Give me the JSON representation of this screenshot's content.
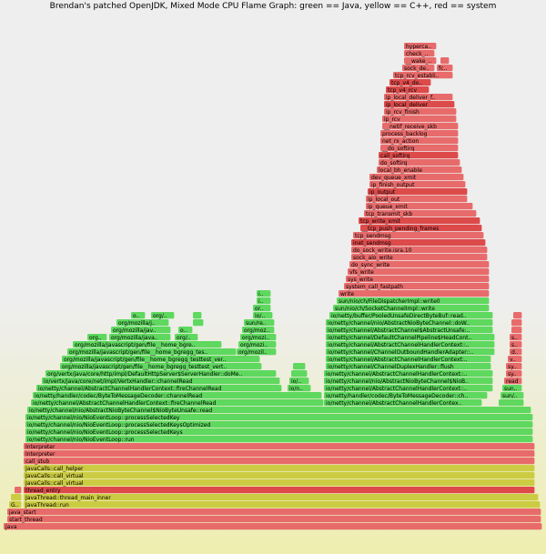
{
  "title": "Brendan's patched OpenJDK, Mixed Mode CPU Flame Graph: green == Java, yellow == C++, red == system",
  "colors": {
    "java": "#5fd85f",
    "cpp": "#cccc44",
    "system": "#e86b6b",
    "kernel": "#dd4a4a"
  },
  "chart_data": {
    "type": "flamegraph",
    "x_total": 600,
    "frames": [
      {
        "name": "java",
        "depth": 0,
        "start": 4,
        "width": 592,
        "kind": "system"
      },
      {
        "name": "start_thread",
        "depth": 1,
        "start": 8,
        "width": 587,
        "kind": "system"
      },
      {
        "name": "java_start",
        "depth": 2,
        "start": 8,
        "width": 587,
        "kind": "system"
      },
      {
        "name": "GC..",
        "depth": 3,
        "start": 10,
        "width": 14,
        "kind": "cpp"
      },
      {
        "name": "JavaThread::run",
        "depth": 3,
        "start": 26,
        "width": 568,
        "kind": "cpp"
      },
      {
        "name": "St..",
        "depth": 4,
        "start": 12,
        "width": 12,
        "kind": "cpp"
      },
      {
        "name": "JavaThread::thread_main_inner",
        "depth": 4,
        "start": 26,
        "width": 566,
        "kind": "cpp"
      },
      {
        "name": "",
        "depth": 5,
        "start": 16,
        "width": 8,
        "kind": "system"
      },
      {
        "name": "thread_entry",
        "depth": 5,
        "start": 26,
        "width": 562,
        "kind": "kernel"
      },
      {
        "name": "JavaCalls::call_virtual",
        "depth": 6,
        "start": 26,
        "width": 562,
        "kind": "cpp"
      },
      {
        "name": "JavaCalls::call_virtual",
        "depth": 7,
        "start": 26,
        "width": 562,
        "kind": "cpp"
      },
      {
        "name": "JavaCalls::call_helper",
        "depth": 8,
        "start": 26,
        "width": 562,
        "kind": "cpp"
      },
      {
        "name": "call_stub",
        "depth": 9,
        "start": 26,
        "width": 562,
        "kind": "system"
      },
      {
        "name": "Interpreter",
        "depth": 10,
        "start": 26,
        "width": 562,
        "kind": "system"
      },
      {
        "name": "Interpreter",
        "depth": 11,
        "start": 26,
        "width": 562,
        "kind": "system"
      },
      {
        "name": "io/netty/channel/nio/NioEventLoop::run",
        "depth": 12,
        "start": 28,
        "width": 558,
        "kind": "java"
      },
      {
        "name": "io/netty/channel/nio/NioEventLoop::processSelectedKeys",
        "depth": 13,
        "start": 28,
        "width": 558,
        "kind": "java"
      },
      {
        "name": "io/netty/channel/nio/NioEventLoop::processSelectedKeysOptimized",
        "depth": 14,
        "start": 28,
        "width": 558,
        "kind": "java"
      },
      {
        "name": "io/netty/channel/nio/NioEventLoop::processSelectedKey",
        "depth": 15,
        "start": 28,
        "width": 558,
        "kind": "java"
      },
      {
        "name": "io/netty/channel/nio/AbstractNioByteChannel$NioByteUnsafe::read",
        "depth": 16,
        "start": 30,
        "width": 554,
        "kind": "java"
      },
      {
        "name": "io/netty/channel/AbstractChannelHandlerContext::fireChannelRead",
        "depth": 17,
        "start": 34,
        "width": 322,
        "kind": "java"
      },
      {
        "name": "io/netty/channel/AbstractChannelHandlerContext::fire..",
        "depth": 17,
        "start": 356,
        "width": 174,
        "kind": "java"
      },
      {
        "name": "",
        "depth": 17,
        "start": 548,
        "width": 28,
        "kind": "java"
      },
      {
        "name": "io/netty/handler/codec/ByteToMessageDecoder::channelRead",
        "depth": 18,
        "start": 36,
        "width": 318,
        "kind": "java"
      },
      {
        "name": "io/netty/handler/codec/ByteToMessageDecoder::channe..",
        "depth": 18,
        "start": 356,
        "width": 180,
        "kind": "java"
      },
      {
        "name": "sun/ni..",
        "depth": 18,
        "start": 550,
        "width": 26,
        "kind": "java"
      },
      {
        "name": "io/netty/channel/AbstractChannelHandlerContext::fireChannelRead",
        "depth": 19,
        "start": 40,
        "width": 270,
        "kind": "java"
      },
      {
        "name": "io/nett..",
        "depth": 19,
        "start": 316,
        "width": 26,
        "kind": "java"
      },
      {
        "name": "io/netty/channel/AbstractChannelHandlerContext::fireChannelR..",
        "depth": 19,
        "start": 356,
        "width": 186,
        "kind": "java"
      },
      {
        "name": "sun/ni..",
        "depth": 19,
        "start": 552,
        "width": 22,
        "kind": "java"
      },
      {
        "name": "io/vertx/java/core/net/impl/VertxHandler::channelRead",
        "depth": 20,
        "start": 46,
        "width": 262,
        "kind": "java"
      },
      {
        "name": "io/..",
        "depth": 20,
        "start": 318,
        "width": 22,
        "kind": "java"
      },
      {
        "name": "io/netty/channel/nio/AbstractNioByteChannel$NioByteUnsafe::f..",
        "depth": 20,
        "start": 356,
        "width": 186,
        "kind": "java"
      },
      {
        "name": "read",
        "depth": 20,
        "start": 554,
        "width": 20,
        "kind": "system"
      },
      {
        "name": "org/vertx/java/core/http/impl/DefaultHttpServer$ServerHandler::doMessage..",
        "depth": 21,
        "start": 50,
        "width": 254,
        "kind": "java"
      },
      {
        "name": "",
        "depth": 21,
        "start": 320,
        "width": 18,
        "kind": "java"
      },
      {
        "name": "io/netty/channel/AbstractChannelHandlerContext::flush",
        "depth": 21,
        "start": 356,
        "width": 186,
        "kind": "java"
      },
      {
        "name": "syste..",
        "depth": 21,
        "start": 556,
        "width": 18,
        "kind": "system"
      },
      {
        "name": "org/mozilla/javascript/gen/file__home_bgregg_testtest_vert_x_2_1_4..",
        "depth": 22,
        "start": 66,
        "width": 222,
        "kind": "java"
      },
      {
        "name": "",
        "depth": 22,
        "start": 322,
        "width": 14,
        "kind": "java"
      },
      {
        "name": "io/netty/channel/ChannelDuplexHandler::flush",
        "depth": 22,
        "start": 358,
        "width": 182,
        "kind": "java"
      },
      {
        "name": "sys..",
        "depth": 22,
        "start": 556,
        "width": 18,
        "kind": "system"
      },
      {
        "name": "org/mozilla/javascript/gen/file__home_bgregg_testtest_vert_x_2_1_4..",
        "depth": 23,
        "start": 68,
        "width": 218,
        "kind": "java"
      },
      {
        "name": "io/netty/channel/AbstractChannelHandlerContext::flush",
        "depth": 23,
        "start": 358,
        "width": 182,
        "kind": "java"
      },
      {
        "name": "vfs..",
        "depth": 23,
        "start": 558,
        "width": 16,
        "kind": "system"
      },
      {
        "name": "org/mozilla/javascript/gen/file__home_bgregg_tes..",
        "depth": 24,
        "start": 74,
        "width": 186,
        "kind": "java"
      },
      {
        "name": "org/mozilla/..",
        "depth": 24,
        "start": 260,
        "width": 44,
        "kind": "java"
      },
      {
        "name": "io/netty/channel/ChannelOutboundHandlerAdapter::fl..",
        "depth": 24,
        "start": 358,
        "width": 186,
        "kind": "java"
      },
      {
        "name": "do..",
        "depth": 24,
        "start": 560,
        "width": 14,
        "kind": "system"
      },
      {
        "name": "org/mozilla/javascript/gen/file__home_bgregg_te..",
        "depth": 25,
        "start": 80,
        "width": 164,
        "kind": "java"
      },
      {
        "name": "org/mozill..",
        "depth": 25,
        "start": 262,
        "width": 42,
        "kind": "java"
      },
      {
        "name": "io/netty/channel/AbstractChannelHandlerContext::flush",
        "depth": 25,
        "start": 358,
        "width": 186,
        "kind": "java"
      },
      {
        "name": "soc..",
        "depth": 25,
        "start": 560,
        "width": 14,
        "kind": "system"
      },
      {
        "name": "org..",
        "depth": 26,
        "start": 96,
        "width": 22,
        "kind": "java"
      },
      {
        "name": "org/mozilla/javasc..",
        "depth": 26,
        "start": 120,
        "width": 68,
        "kind": "java"
      },
      {
        "name": "org/mo..",
        "depth": 26,
        "start": 192,
        "width": 26,
        "kind": "java"
      },
      {
        "name": "org/mozill..",
        "depth": 26,
        "start": 264,
        "width": 40,
        "kind": "java"
      },
      {
        "name": "io/netty/channel/DefaultChannelPipeline$HeadContex..",
        "depth": 26,
        "start": 358,
        "width": 186,
        "kind": "java"
      },
      {
        "name": "soc..",
        "depth": 26,
        "start": 560,
        "width": 14,
        "kind": "system"
      },
      {
        "name": "org/mozilla/javasc..",
        "depth": 27,
        "start": 122,
        "width": 66,
        "kind": "java"
      },
      {
        "name": "o..",
        "depth": 27,
        "start": 196,
        "width": 16,
        "kind": "java"
      },
      {
        "name": "org/mozill..",
        "depth": 27,
        "start": 266,
        "width": 36,
        "kind": "java"
      },
      {
        "name": "io/netty/channel/AbstractChannel$AbstractUnsafe::..",
        "depth": 27,
        "start": 358,
        "width": 184,
        "kind": "java"
      },
      {
        "name": "in..",
        "depth": 27,
        "start": 562,
        "width": 12,
        "kind": "system"
      },
      {
        "name": "org/mozilla/javas..",
        "depth": 28,
        "start": 128,
        "width": 58,
        "kind": "java"
      },
      {
        "name": "o..",
        "depth": 28,
        "start": 212,
        "width": 12,
        "kind": "java"
      },
      {
        "name": "sun/refl..",
        "depth": 28,
        "start": 268,
        "width": 34,
        "kind": "java"
      },
      {
        "name": "io/netty/channel/nio/AbstractNioByteChannel::doWr..",
        "depth": 28,
        "start": 358,
        "width": 184,
        "kind": "java"
      },
      {
        "name": "",
        "depth": 28,
        "start": 562,
        "width": 12,
        "kind": "system"
      },
      {
        "name": "o..",
        "depth": 29,
        "start": 144,
        "width": 16,
        "kind": "java"
      },
      {
        "name": "org/m..",
        "depth": 29,
        "start": 166,
        "width": 26,
        "kind": "java"
      },
      {
        "name": "o..",
        "depth": 29,
        "start": 212,
        "width": 10,
        "kind": "java"
      },
      {
        "name": "io/n..",
        "depth": 29,
        "start": 278,
        "width": 22,
        "kind": "java"
      },
      {
        "name": "io/netty/buffer/PooledUnsafeDirectByteBuf::read..",
        "depth": 29,
        "start": 362,
        "width": 180,
        "kind": "java"
      },
      {
        "name": "t..",
        "depth": 29,
        "start": 564,
        "width": 10,
        "kind": "system"
      },
      {
        "name": "org..",
        "depth": 30,
        "start": 278,
        "width": 20,
        "kind": "java"
      },
      {
        "name": "sun/nio/ch/SocketChannelImpl::write",
        "depth": 30,
        "start": 366,
        "width": 172,
        "kind": "java"
      },
      {
        "name": "sun/nio/ch/FileDispatcherImpl::write0",
        "depth": 31,
        "start": 370,
        "width": 168,
        "kind": "java"
      },
      {
        "name": "io/..",
        "depth": 31,
        "start": 282,
        "width": 16,
        "kind": "java"
      },
      {
        "name": "write",
        "depth": 32,
        "start": 372,
        "width": 166,
        "kind": "system"
      },
      {
        "name": "io/..",
        "depth": 32,
        "start": 282,
        "width": 16,
        "kind": "java"
      },
      {
        "name": "system_call_fastpath",
        "depth": 33,
        "start": 378,
        "width": 160,
        "kind": "system"
      },
      {
        "name": "sys_write",
        "depth": 34,
        "start": 380,
        "width": 158,
        "kind": "system"
      },
      {
        "name": "vfs_write",
        "depth": 35,
        "start": 382,
        "width": 156,
        "kind": "system"
      },
      {
        "name": "do_sync_write",
        "depth": 36,
        "start": 384,
        "width": 154,
        "kind": "system"
      },
      {
        "name": "sock_aio_write",
        "depth": 37,
        "start": 386,
        "width": 150,
        "kind": "system"
      },
      {
        "name": "do_sock_write.isra.10",
        "depth": 38,
        "start": 386,
        "width": 150,
        "kind": "system"
      },
      {
        "name": "inet_sendmsg",
        "depth": 39,
        "start": 386,
        "width": 148,
        "kind": "kernel"
      },
      {
        "name": "tcp_sendmsg",
        "depth": 40,
        "start": 388,
        "width": 144,
        "kind": "system"
      },
      {
        "name": "__tcp_push_pending_frames",
        "depth": 41,
        "start": 396,
        "width": 134,
        "kind": "kernel"
      },
      {
        "name": "tcp_write_xmit",
        "depth": 42,
        "start": 394,
        "width": 134,
        "kind": "kernel"
      },
      {
        "name": "tcp_transmit_skb",
        "depth": 43,
        "start": 400,
        "width": 124,
        "kind": "system"
      },
      {
        "name": "ip_queue_xmit",
        "depth": 44,
        "start": 402,
        "width": 118,
        "kind": "system"
      },
      {
        "name": "ip_local_out",
        "depth": 45,
        "start": 402,
        "width": 112,
        "kind": "system"
      },
      {
        "name": "ip_output",
        "depth": 46,
        "start": 404,
        "width": 110,
        "kind": "kernel"
      },
      {
        "name": "ip_finish_output",
        "depth": 47,
        "start": 406,
        "width": 106,
        "kind": "system"
      },
      {
        "name": "dev_queue_xmit",
        "depth": 48,
        "start": 406,
        "width": 104,
        "kind": "system"
      },
      {
        "name": "local_bh_enable",
        "depth": 49,
        "start": 414,
        "width": 94,
        "kind": "system"
      },
      {
        "name": "do_softirq",
        "depth": 50,
        "start": 416,
        "width": 90,
        "kind": "system"
      },
      {
        "name": "call_softirq",
        "depth": 51,
        "start": 416,
        "width": 88,
        "kind": "kernel"
      },
      {
        "name": "__do_softirq",
        "depth": 52,
        "start": 418,
        "width": 86,
        "kind": "system"
      },
      {
        "name": "net_rx_action",
        "depth": 53,
        "start": 418,
        "width": 86,
        "kind": "system"
      },
      {
        "name": "process_backlog",
        "depth": 54,
        "start": 418,
        "width": 86,
        "kind": "system"
      },
      {
        "name": "__netif_receive_skb",
        "depth": 55,
        "start": 420,
        "width": 84,
        "kind": "system"
      },
      {
        "name": "ip_rcv",
        "depth": 56,
        "start": 420,
        "width": 82,
        "kind": "system"
      },
      {
        "name": "ip_rcv_finish",
        "depth": 57,
        "start": 422,
        "width": 80,
        "kind": "system"
      },
      {
        "name": "ip_local_deliver",
        "depth": 58,
        "start": 422,
        "width": 78,
        "kind": "kernel"
      },
      {
        "name": "ip_local_deliver_fin..",
        "depth": 59,
        "start": 422,
        "width": 76,
        "kind": "system"
      },
      {
        "name": "tcp_v4_rcv",
        "depth": 60,
        "start": 424,
        "width": 48,
        "kind": "kernel"
      },
      {
        "name": "tcp_v4_do_rcv",
        "depth": 61,
        "start": 428,
        "width": 46,
        "kind": "kernel"
      },
      {
        "name": "tcp_rcv_established",
        "depth": 62,
        "start": 432,
        "width": 66,
        "kind": "system"
      },
      {
        "name": "sock_def_..",
        "depth": 63,
        "start": 442,
        "width": 36,
        "kind": "system"
      },
      {
        "name": "fc..",
        "depth": 63,
        "start": 480,
        "width": 18,
        "kind": "system"
      },
      {
        "name": "__wake_u..",
        "depth": 64,
        "start": 444,
        "width": 36,
        "kind": "system"
      },
      {
        "name": "t..",
        "depth": 64,
        "start": 484,
        "width": 10,
        "kind": "system"
      },
      {
        "name": "check_ev..",
        "depth": 65,
        "start": 444,
        "width": 34,
        "kind": "system"
      },
      {
        "name": "hyperca..",
        "depth": 66,
        "start": 444,
        "width": 36,
        "kind": "system"
      }
    ]
  }
}
